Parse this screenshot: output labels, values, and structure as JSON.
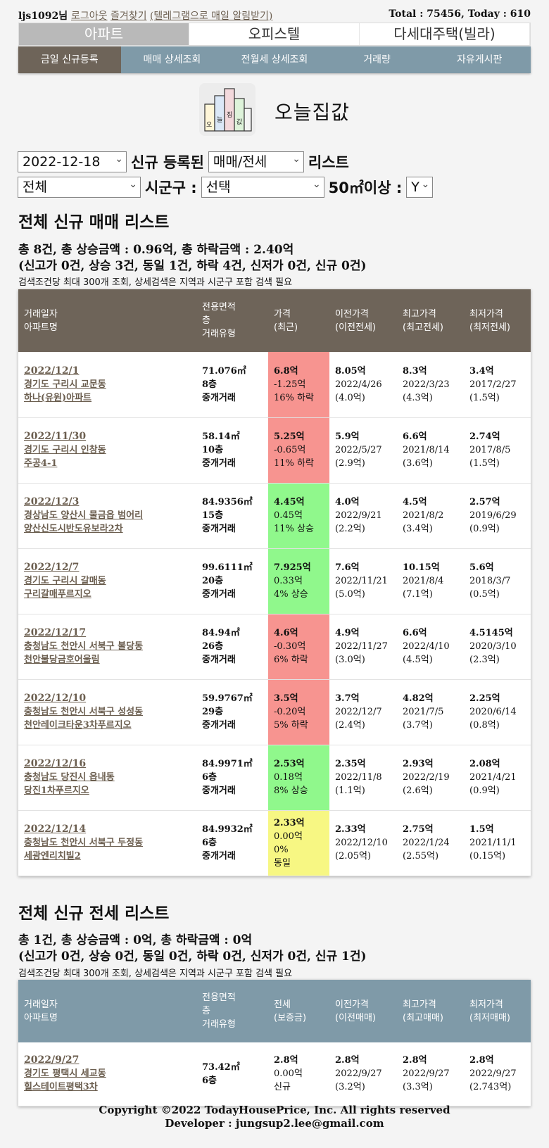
{
  "topbar": {
    "user": "ljs1092님",
    "logout": "로그아웃",
    "favorites": "즐겨찾기",
    "telegram": "(텔레그램으로 매일 알림받기)",
    "stats": "Total : 75456, Today : 610"
  },
  "typetabs": [
    "아파트",
    "오피스텔",
    "다세대주택(빌라)"
  ],
  "menu": [
    "금일 신규등록",
    "매매 상세조회",
    "전월세 상세조회",
    "거래량",
    "자유게시판"
  ],
  "logo": {
    "icon_text": "오늘집값",
    "text": "오늘집값"
  },
  "filters": {
    "date": "2022-12-18",
    "label_registered": "신규 등록된",
    "deal_type": "매매/전세",
    "label_list": "리스트",
    "region": "전체",
    "label_sigungu": "시군구 :",
    "sigungu": "선택",
    "label_area": "50㎡이상 :",
    "area_opt": "Y"
  },
  "sale": {
    "title": "전체 신규 매매 리스트",
    "summary1": "총 8건, 총 상승금액 : 0.96억, 총 하락금액 : 2.40억",
    "summary2": "(신고가 0건, 상승 3건, 동일 1건, 하락 4건, 신저가 0건, 신규 0건)",
    "note": "검색조건당 최대 300개 조회, 상세검색은 지역과 시군구 포함 검색 필요",
    "headers": [
      [
        "거래일자",
        "아파트명"
      ],
      [
        "전용면적",
        "층",
        "거래유형"
      ],
      [
        "가격",
        "(최근)"
      ],
      [
        "이전가격",
        "(이전전세)"
      ],
      [
        "최고가격",
        "(최고전세)"
      ],
      [
        "최저가격",
        "(최저전세)"
      ]
    ],
    "rows": [
      {
        "date": "2022/12/1",
        "addr": "경기도 구리시 교문동",
        "name": "하나(유원)아파트",
        "area": "71.076㎡",
        "floor": "8층",
        "deal": "중개거래",
        "price": "6.8억",
        "diff": "-1.25억",
        "rate": "16% 하락",
        "status": "down",
        "prev": "8.05억",
        "prev_date": "2022/4/26",
        "prev_j": "(4.0억)",
        "high": "8.3억",
        "high_date": "2022/3/23",
        "high_j": "(4.3억)",
        "low": "3.4억",
        "low_date": "2017/2/27",
        "low_j": "(1.5억)"
      },
      {
        "date": "2022/11/30",
        "addr": "경기도 구리시 인창동",
        "name": "주공4-1",
        "area": "58.14㎡",
        "floor": "10층",
        "deal": "중개거래",
        "price": "5.25억",
        "diff": "-0.65억",
        "rate": "11% 하락",
        "status": "down",
        "prev": "5.9억",
        "prev_date": "2022/5/27",
        "prev_j": "(2.9억)",
        "high": "6.6억",
        "high_date": "2021/8/14",
        "high_j": "(3.6억)",
        "low": "2.74억",
        "low_date": "2017/8/5",
        "low_j": "(1.5억)"
      },
      {
        "date": "2022/12/3",
        "addr": "경상남도 양산시 물금읍 범어리",
        "name": "양산신도시반도유보라2차",
        "area": "84.9356㎡",
        "floor": "15층",
        "deal": "중개거래",
        "price": "4.45억",
        "diff": "0.45억",
        "rate": "11% 상승",
        "status": "up",
        "prev": "4.0억",
        "prev_date": "2022/9/21",
        "prev_j": "(2.2억)",
        "high": "4.5억",
        "high_date": "2021/8/2",
        "high_j": "(3.4억)",
        "low": "2.57억",
        "low_date": "2019/6/29",
        "low_j": "(0.9억)"
      },
      {
        "date": "2022/12/7",
        "addr": "경기도 구리시 갈매동",
        "name": "구리갈매푸르지오",
        "area": "99.6111㎡",
        "floor": "20층",
        "deal": "중개거래",
        "price": "7.925억",
        "diff": "0.33억",
        "rate": "4% 상승",
        "status": "up",
        "prev": "7.6억",
        "prev_date": "2022/11/21",
        "prev_j": "(5.0억)",
        "high": "10.15억",
        "high_date": "2021/8/4",
        "high_j": "(7.1억)",
        "low": "5.6억",
        "low_date": "2018/3/7",
        "low_j": "(0.5억)"
      },
      {
        "date": "2022/12/17",
        "addr": "충청남도 천안시 서북구 불당동",
        "name": "천안불당금호어울림",
        "area": "84.94㎡",
        "floor": "26층",
        "deal": "중개거래",
        "price": "4.6억",
        "diff": "-0.30억",
        "rate": "6% 하락",
        "status": "down",
        "prev": "4.9억",
        "prev_date": "2022/11/27",
        "prev_j": "(3.0억)",
        "high": "6.6억",
        "high_date": "2022/4/10",
        "high_j": "(4.5억)",
        "low": "4.5145억",
        "low_date": "2020/3/10",
        "low_j": "(2.3억)"
      },
      {
        "date": "2022/12/10",
        "addr": "충청남도 천안시 서북구 성성동",
        "name": "천안레이크타운3차푸르지오",
        "area": "59.9767㎡",
        "floor": "29층",
        "deal": "중개거래",
        "price": "3.5억",
        "diff": "-0.20억",
        "rate": "5% 하락",
        "status": "down",
        "prev": "3.7억",
        "prev_date": "2022/12/7",
        "prev_j": "(2.4억)",
        "high": "4.82억",
        "high_date": "2021/7/5",
        "high_j": "(3.7억)",
        "low": "2.25억",
        "low_date": "2020/6/14",
        "low_j": "(0.8억)"
      },
      {
        "date": "2022/12/16",
        "addr": "충청남도 당진시 읍내동",
        "name": "당진1차푸르지오",
        "area": "84.9971㎡",
        "floor": "6층",
        "deal": "중개거래",
        "price": "2.53억",
        "diff": "0.18억",
        "rate": "8% 상승",
        "status": "up",
        "prev": "2.35억",
        "prev_date": "2022/11/8",
        "prev_j": "(1.1억)",
        "high": "2.93억",
        "high_date": "2022/2/19",
        "high_j": "(2.6억)",
        "low": "2.08억",
        "low_date": "2021/4/21",
        "low_j": "(0.9억)"
      },
      {
        "date": "2022/12/14",
        "addr": "충청남도 천안시 서북구 두정동",
        "name": "세광엔리치빌2",
        "area": "84.9932㎡",
        "floor": "6층",
        "deal": "중개거래",
        "price": "2.33억",
        "diff": "0.00억",
        "rate": "0%",
        "rate2": "동일",
        "status": "same",
        "prev": "2.33억",
        "prev_date": "2022/12/10",
        "prev_j": "(2.05억)",
        "high": "2.75억",
        "high_date": "2022/1/24",
        "high_j": "(2.55억)",
        "low": "1.5억",
        "low_date": "2021/11/1",
        "low_j": "(0.15억)"
      }
    ],
    "colors": {
      "down": "#f79490",
      "up": "#90f88c",
      "same": "#f7f783"
    }
  },
  "jeonse": {
    "title": "전체 신규 전세 리스트",
    "summary1": "총 1건, 총 상승금액 : 0억, 총 하락금액 : 0억",
    "summary2": "(신고가 0건, 상승 0건, 동일 0건, 하락 0건, 신저가 0건, 신규 1건)",
    "note": "검색조건당 최대 300개 조회, 상세검색은 지역과 시군구 포함 검색 필요",
    "headers": [
      [
        "거래일자",
        "아파트명"
      ],
      [
        "전용면적",
        "층",
        "거래유형"
      ],
      [
        "전세",
        "(보증금)"
      ],
      [
        "이전가격",
        "(이전매매)"
      ],
      [
        "최고가격",
        "(최고매매)"
      ],
      [
        "최저가격",
        "(최저매매)"
      ]
    ],
    "rows": [
      {
        "date": "2022/9/27",
        "addr": "경기도 평택시 세교동",
        "name": "힐스테이트평택3차",
        "area": "73.42㎡",
        "floor": "6층",
        "price": "2.8억",
        "diff": "0.00억",
        "rate": "신규",
        "prev": "2.8억",
        "prev_date": "2022/9/27",
        "prev_j": "(3.2억)",
        "high": "2.8억",
        "high_date": "2022/9/27",
        "high_j": "(3.3억)",
        "low": "2.8억",
        "low_date": "2022/9/27",
        "low_j": "(2.743억)"
      }
    ]
  },
  "footer": {
    "copyright": "Copyright ©2022 TodayHousePrice, Inc. All rights reserved",
    "developer": "Developer : jungsup2.lee@gmail.com"
  }
}
